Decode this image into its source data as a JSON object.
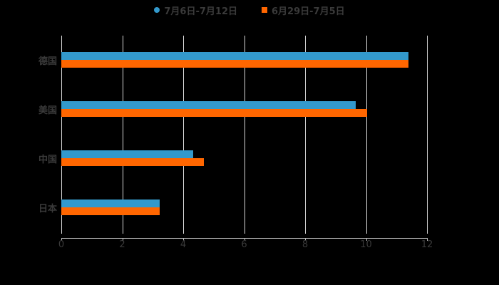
{
  "chart_data": {
    "type": "bar",
    "orientation": "horizontal",
    "title": "",
    "xlabel": "",
    "ylabel": "",
    "categories": [
      "德国",
      "美国",
      "中国",
      "日本"
    ],
    "series": [
      {
        "name": "7月6日-7月12日",
        "color": "#3399cc",
        "values": [
          11.4,
          9.66,
          4.33,
          3.23
        ]
      },
      {
        "name": "6月29日-7月5日",
        "color": "#ff6600",
        "values": [
          11.4,
          10.04,
          4.68,
          3.23
        ]
      }
    ],
    "xlim": [
      0,
      12
    ],
    "xticks": [
      "0",
      "2",
      "4",
      "6",
      "8",
      "10",
      "12"
    ],
    "grid": true,
    "legend_position": "top"
  },
  "legend": [
    {
      "label": "7月6日-7月12日",
      "color": "#3399cc"
    },
    {
      "label": "6月29日-7月5日",
      "color": "#ff6600"
    }
  ]
}
